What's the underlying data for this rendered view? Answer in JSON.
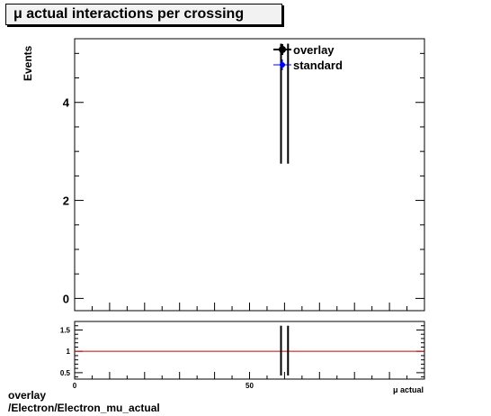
{
  "title": "μ actual interactions per crossing",
  "footer": {
    "line1": "overlay",
    "line2": "/Electron/Electron_mu_actual"
  },
  "colors": {
    "overlay": "#000000",
    "standard": "#0000ff",
    "ratio_line": "#cc0000"
  },
  "chart_data": [
    {
      "type": "scatter",
      "ylabel": "Events",
      "xlim": [
        0,
        100
      ],
      "ylim": [
        -0.25,
        5.3
      ],
      "yticks": [
        0,
        2,
        4
      ],
      "legend": {
        "placement": "top-right",
        "entries": [
          "overlay",
          "standard"
        ]
      },
      "series": [
        {
          "name": "overlay",
          "points": [
            {
              "x": 59,
              "y": 5.2,
              "yerr_low": 2.45
            },
            {
              "x": 61,
              "y": 5.2,
              "yerr_low": 2.45
            }
          ]
        },
        {
          "name": "standard",
          "points": []
        }
      ]
    },
    {
      "type": "line",
      "xlabel": "μ actual",
      "xlim": [
        0,
        100
      ],
      "ylim": [
        0.35,
        1.7
      ],
      "yticks": [
        0.5,
        1,
        1.5
      ],
      "xticks": [
        0,
        50
      ],
      "reference_line": 1,
      "series": [
        {
          "name": "ratio",
          "points": [
            {
              "x": 59,
              "y": 1,
              "yerr_low": 0.6,
              "yerr_high": 0.6
            },
            {
              "x": 61,
              "y": 1,
              "yerr_low": 0.6,
              "yerr_high": 0.6
            }
          ]
        }
      ]
    }
  ]
}
